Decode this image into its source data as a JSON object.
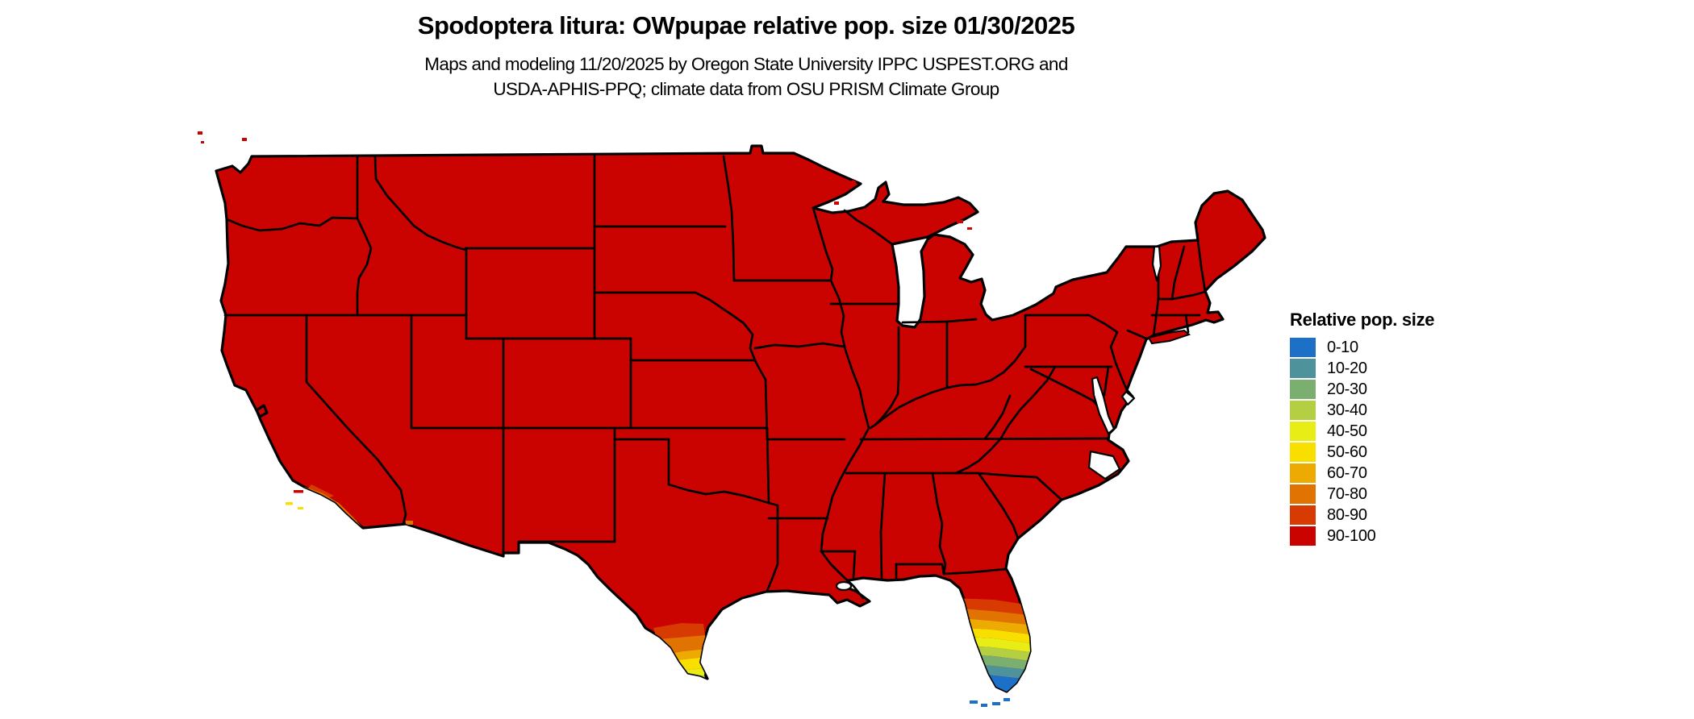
{
  "title": "Spodoptera litura: OWpupae relative pop. size 01/30/2025",
  "subtitle_line1": "Maps and modeling 11/20/2025 by Oregon State University IPPC USPEST.ORG and",
  "subtitle_line2": "USDA-APHIS-PPQ; climate data from OSU PRISM Climate Group",
  "legend": {
    "title": "Relative pop. size",
    "entries": [
      {
        "label": "0-10",
        "color": "#1d70c8"
      },
      {
        "label": "10-20",
        "color": "#4e929c"
      },
      {
        "label": "20-30",
        "color": "#7baf70"
      },
      {
        "label": "30-40",
        "color": "#b5cf42"
      },
      {
        "label": "40-50",
        "color": "#e8ee15"
      },
      {
        "label": "50-60",
        "color": "#f9df00"
      },
      {
        "label": "60-70",
        "color": "#edaa02"
      },
      {
        "label": "70-80",
        "color": "#e17302"
      },
      {
        "label": "80-90",
        "color": "#d73b01"
      },
      {
        "label": "90-100",
        "color": "#cb0300"
      }
    ]
  },
  "map": {
    "region": "Continental United States with state boundaries",
    "dominant_class": "90-100",
    "gradient_regions": [
      {
        "name": "southern Florida peninsula",
        "classes": [
          "80-90",
          "70-80",
          "60-70",
          "50-60",
          "40-50",
          "30-40",
          "20-30",
          "10-20",
          "0-10"
        ]
      },
      {
        "name": "Florida Keys",
        "classes": [
          "0-10"
        ]
      },
      {
        "name": "Rio Grande Valley, southern Texas",
        "classes": [
          "80-90",
          "70-80",
          "60-70",
          "50-60",
          "40-50",
          "30-40"
        ]
      },
      {
        "name": "coastal southern California and Channel Islands",
        "classes": [
          "80-90",
          "70-80",
          "50-60",
          "40-50"
        ]
      }
    ],
    "background_color": "#ffffff",
    "boundary_color": "#000000"
  }
}
